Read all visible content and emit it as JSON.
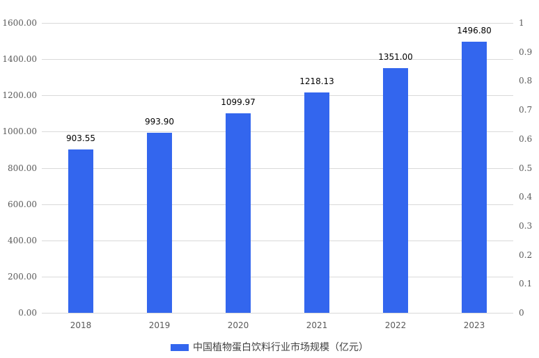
{
  "chart_data": {
    "type": "bar",
    "title": "",
    "categories": [
      "2018",
      "2019",
      "2020",
      "2021",
      "2022",
      "2023"
    ],
    "series": [
      {
        "name": "中国植物蛋白饮料行业市场规模（亿元）",
        "values": [
          903.55,
          993.9,
          1099.97,
          1218.13,
          1351.0,
          1496.8
        ],
        "labels": [
          "903.55",
          "993.90",
          "1099.97",
          "1218.13",
          "1351.00",
          "1496.80"
        ],
        "color": "#3366ee"
      }
    ],
    "xlabel": "",
    "ylabel": "",
    "ylim": [
      0,
      1600
    ],
    "y_ticks_left": [
      "0.00",
      "200.00",
      "400.00",
      "600.00",
      "800.00",
      "1000.00",
      "1200.00",
      "1400.00",
      "1600.00"
    ],
    "y2lim": [
      0,
      1
    ],
    "y_ticks_right": [
      "0",
      "0.1",
      "0.2",
      "0.3",
      "0.4",
      "0.5",
      "0.6",
      "0.7",
      "0.8",
      "0.9",
      "1"
    ],
    "grid": true,
    "legend_position": "bottom"
  },
  "legend": {
    "label": "中国植物蛋白饮料行业市场规模（亿元）",
    "color": "#3366ee"
  },
  "colors": {
    "bar": "#3366ee",
    "grid": "#d9d9d9",
    "axis_text": "#595959"
  }
}
